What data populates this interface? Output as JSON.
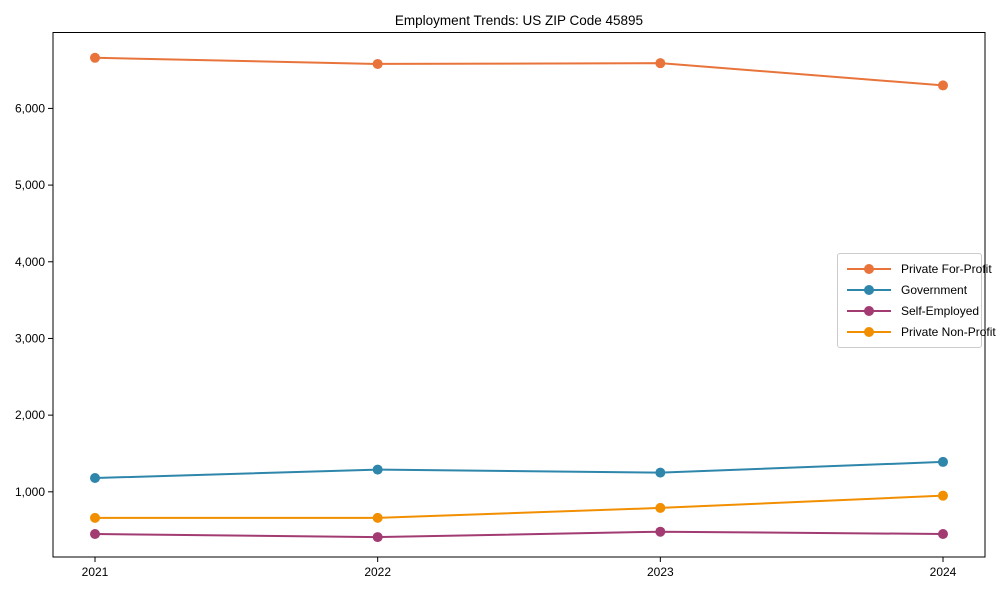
{
  "chart_data": {
    "type": "line",
    "title": "Employment Trends: US ZIP Code 45895",
    "xlabel": "",
    "ylabel": "",
    "x": [
      "2021",
      "2022",
      "2023",
      "2024"
    ],
    "series": [
      {
        "name": "Private For-Profit",
        "color": "#E8743B",
        "values": [
          6660,
          6580,
          6590,
          6300
        ]
      },
      {
        "name": "Government",
        "color": "#2E86AB",
        "values": [
          1180,
          1290,
          1250,
          1390
        ]
      },
      {
        "name": "Self-Employed",
        "color": "#A23B72",
        "values": [
          450,
          410,
          480,
          450
        ]
      },
      {
        "name": "Private Non-Profit",
        "color": "#F18F01",
        "values": [
          660,
          660,
          790,
          950
        ]
      }
    ],
    "yticks": {
      "values": [
        1000,
        2000,
        3000,
        4000,
        5000,
        6000
      ],
      "labels": [
        "1,000",
        "2,000",
        "3,000",
        "4,000",
        "5,000",
        "6,000"
      ]
    },
    "ylim": [
      150,
      6990
    ],
    "grid": false,
    "legend_position": "center right",
    "marker": "circle"
  }
}
